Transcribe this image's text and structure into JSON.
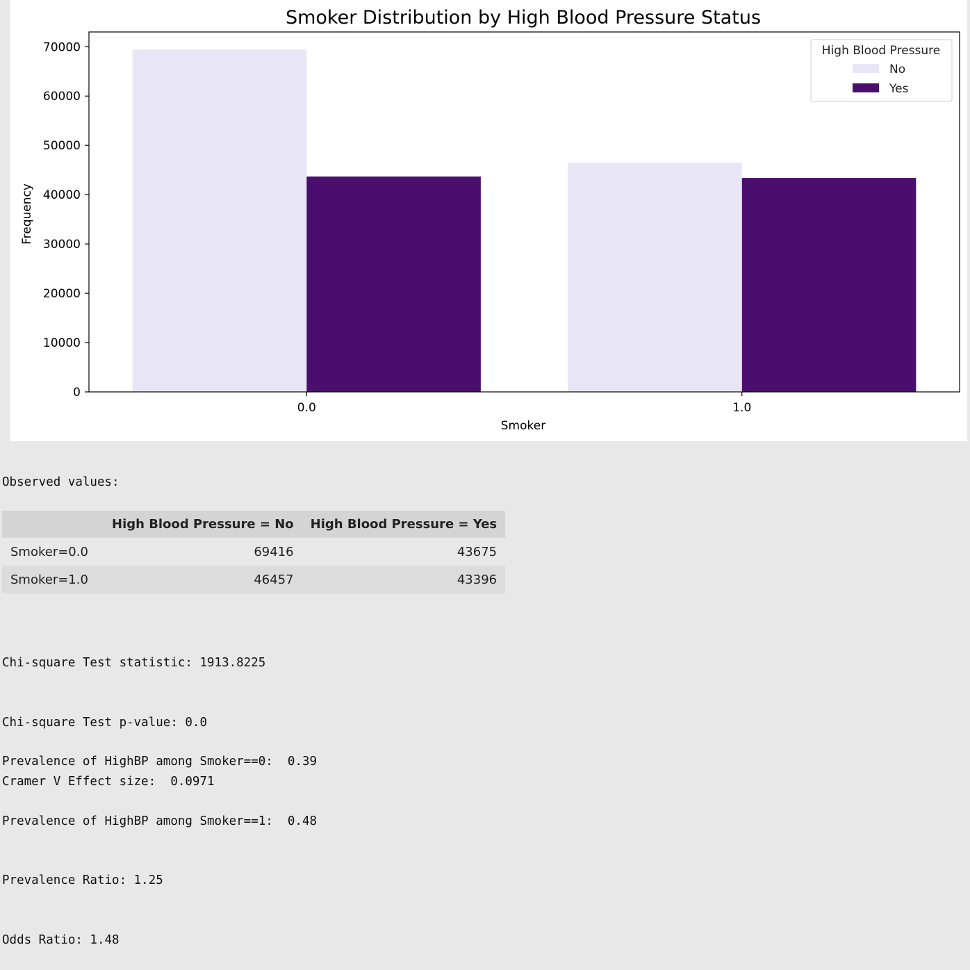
{
  "chart_data": {
    "type": "bar",
    "title": "Smoker Distribution by High Blood Pressure Status",
    "xlabel": "Smoker",
    "ylabel": "Frequency",
    "categories": [
      "0.0",
      "1.0"
    ],
    "ylim": [
      0,
      73000
    ],
    "yticks": [
      0,
      10000,
      20000,
      30000,
      40000,
      50000,
      60000,
      70000
    ],
    "grid": false,
    "legend": {
      "title": "High Blood Pressure",
      "placement": "top-right"
    },
    "series": [
      {
        "name": "No",
        "values": [
          69416,
          46457
        ],
        "color": "#e8e6f6"
      },
      {
        "name": "Yes",
        "values": [
          43675,
          43396
        ],
        "color": "#4a0f6e"
      }
    ]
  },
  "observed": {
    "label": "Observed values:",
    "headers": [
      "",
      "High Blood Pressure = No",
      "High Blood Pressure = Yes"
    ],
    "rows": [
      [
        "Smoker=0.0",
        "69416",
        "43675"
      ],
      [
        "Smoker=1.0",
        "46457",
        "43396"
      ]
    ]
  },
  "stats": [
    "Chi-square Test statistic: 1913.8225",
    "Chi-square Test p-value: 0.0",
    "Cramer V Effect size:  0.0971"
  ],
  "prevalence": [
    "Prevalence of HighBP among Smoker==0:  0.39",
    "Prevalence of HighBP among Smoker==1:  0.48",
    "Prevalence Ratio: 1.25",
    "Odds Ratio: 1.48"
  ]
}
